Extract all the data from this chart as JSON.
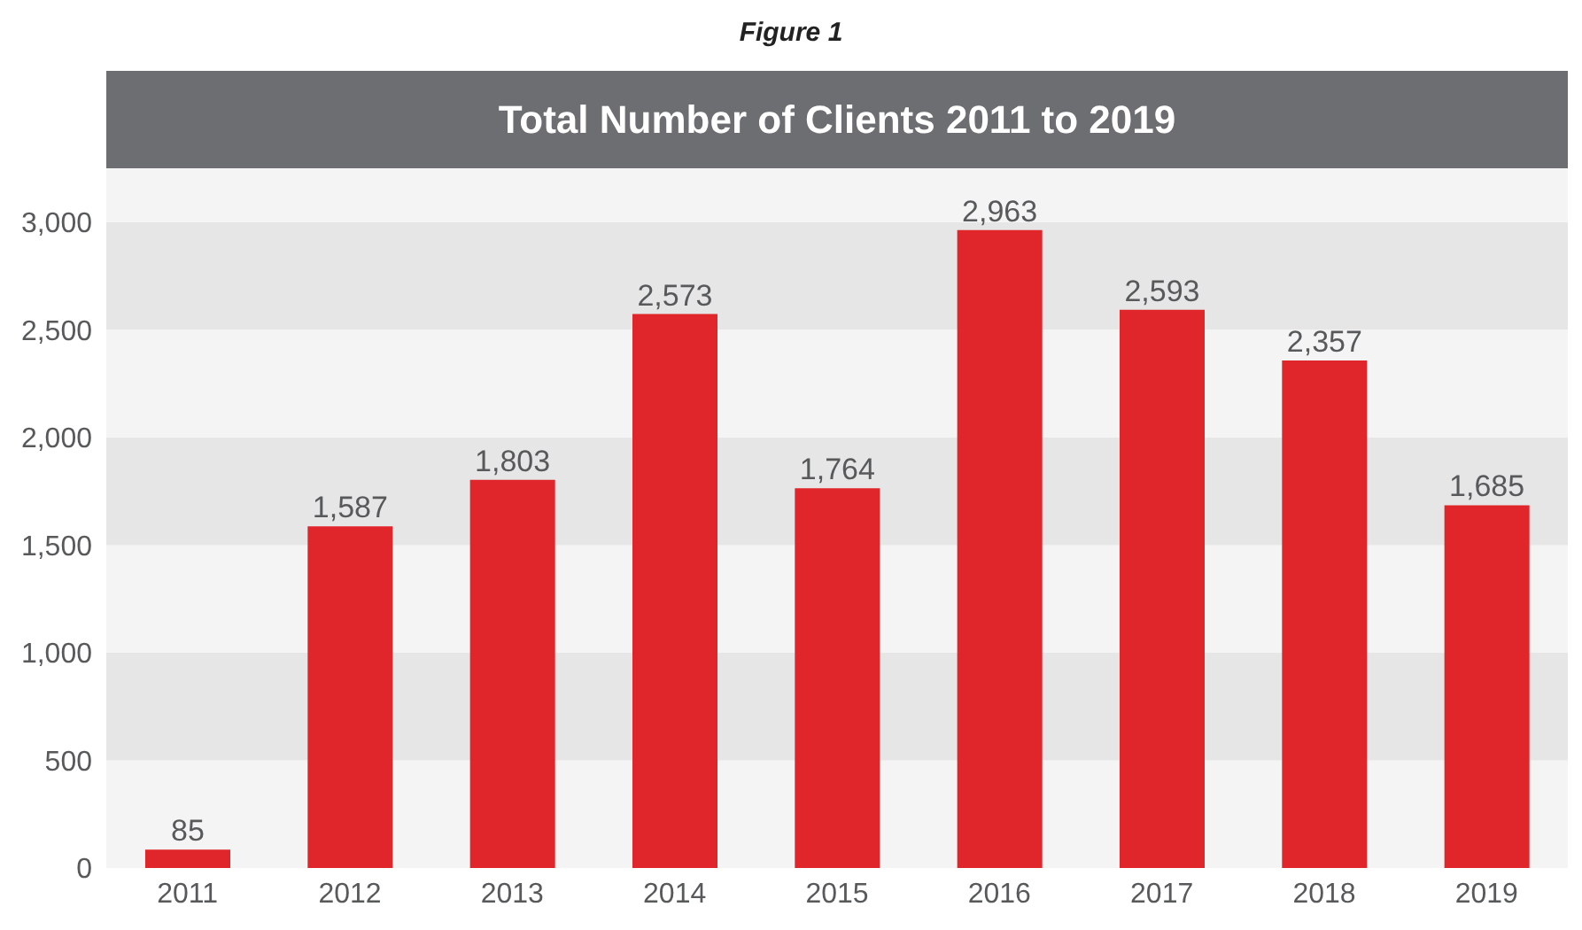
{
  "chart_data": {
    "type": "bar",
    "title": "Total Number of Clients 2011 to 2019",
    "annotations": [
      "Figure 1"
    ],
    "categories": [
      "2011",
      "2012",
      "2013",
      "2014",
      "2015",
      "2016",
      "2017",
      "2018",
      "2019"
    ],
    "values": [
      85,
      1587,
      1803,
      2573,
      1764,
      2963,
      2593,
      2357,
      1685
    ],
    "color": "#e0262b",
    "value_labels": [
      "85",
      "1,587",
      "1,803",
      "2,573",
      "1,764",
      "2,963",
      "2,593",
      "2,357",
      "1,685"
    ],
    "ylim": [
      0,
      3250
    ],
    "yticks": [
      0,
      500,
      {
        "value": 1000,
        "label": "1,000"
      },
      {
        "value": 1500,
        "label": "1,500"
      },
      {
        "value": 2000,
        "label": "2,000"
      },
      {
        "value": 2500,
        "label": "2,500"
      },
      {
        "value": 3000,
        "label": "3,000"
      }
    ],
    "bands": [
      {
        "axis": "y",
        "from": 0,
        "to": 500,
        "color": "#f4f4f4"
      },
      {
        "axis": "y",
        "from": 500,
        "to": 1000,
        "color": "#e6e6e6"
      },
      {
        "axis": "y",
        "from": 1000,
        "to": 1500,
        "color": "#f4f4f4"
      },
      {
        "axis": "y",
        "from": 1500,
        "to": 2000,
        "color": "#e6e6e6"
      },
      {
        "axis": "y",
        "from": 2000,
        "to": 2500,
        "color": "#f4f4f4"
      },
      {
        "axis": "y",
        "from": 2500,
        "to": 3000,
        "color": "#e6e6e6"
      },
      {
        "axis": "y",
        "from": 3000,
        "to": 3250,
        "color": "#f4f4f4"
      }
    ]
  }
}
